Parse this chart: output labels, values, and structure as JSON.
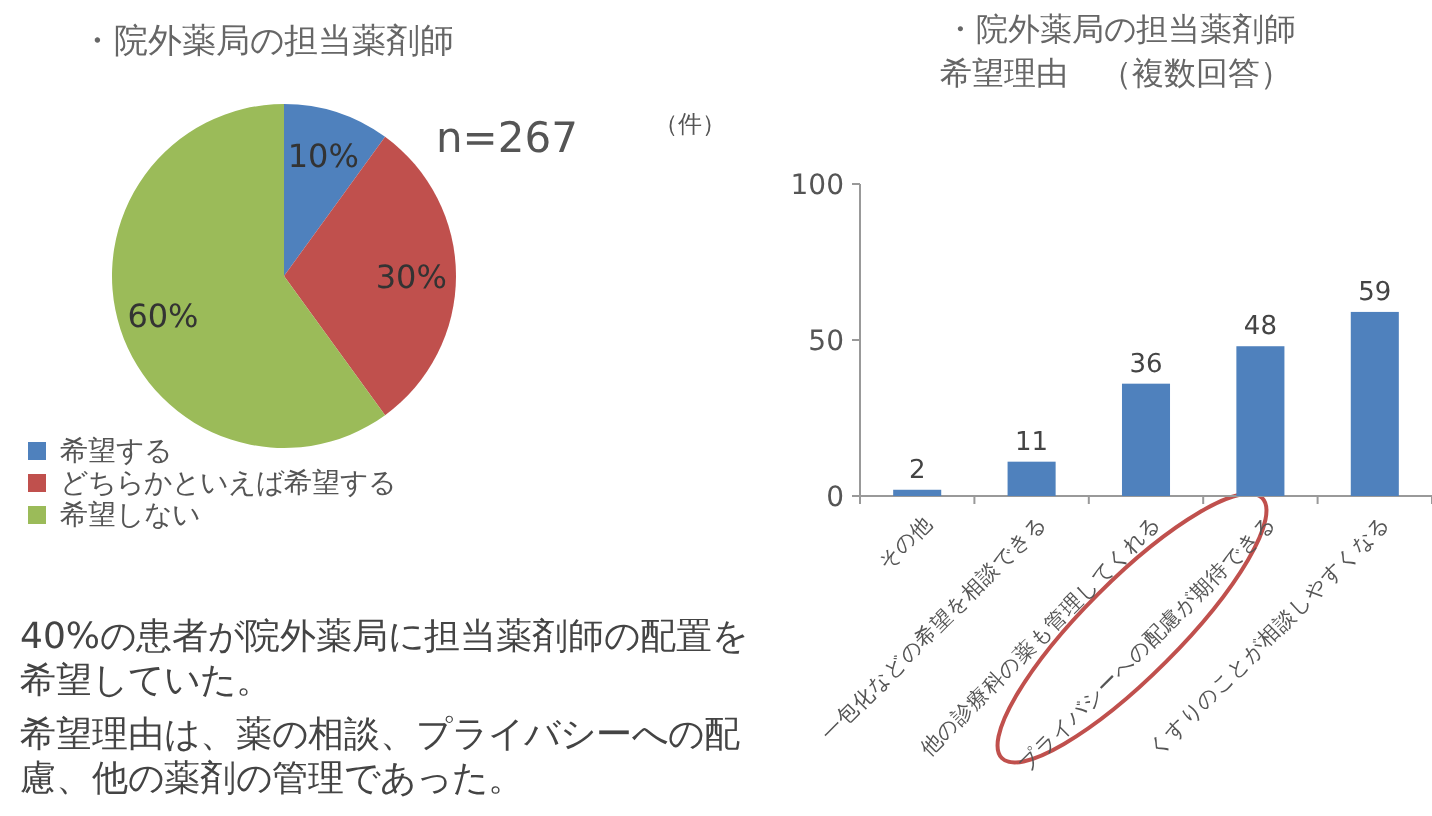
{
  "chart_data": [
    {
      "type": "pie",
      "title": "・院外薬局の担当薬剤師",
      "categories": [
        "希望する",
        "どちらかといえば希望する",
        "希望しない"
      ],
      "values": [
        10,
        30,
        60
      ],
      "colors": [
        "#4f81bd",
        "#c0504d",
        "#9bbb59"
      ],
      "value_labels": [
        "10%",
        "30%",
        "60%"
      ],
      "legend": "bottom left",
      "annotations": [
        "n=267",
        "40%の患者が院外薬局に担当薬剤師の配置を希望していた。",
        "希望理由は、薬の相談、プライバシーへの配慮、他の薬剤の管理であった。"
      ]
    },
    {
      "type": "bar",
      "title": "・院外薬局の担当薬剤師",
      "subtitle": "希望理由　（複数回答）",
      "ylabel": "（件）",
      "categories": [
        "その他",
        "一包化などの希望を相談できる",
        "他の診療科の薬も管理してくれる",
        "プライバシーへの配慮が期待できる",
        "くすりのことが相談しやすくなる"
      ],
      "values": [
        2,
        11,
        36,
        48,
        59
      ],
      "color": "#4f81bd",
      "ylim": [
        0,
        100
      ],
      "yticks": [
        0,
        50,
        100
      ],
      "data_labels": true,
      "grid": false
    }
  ]
}
